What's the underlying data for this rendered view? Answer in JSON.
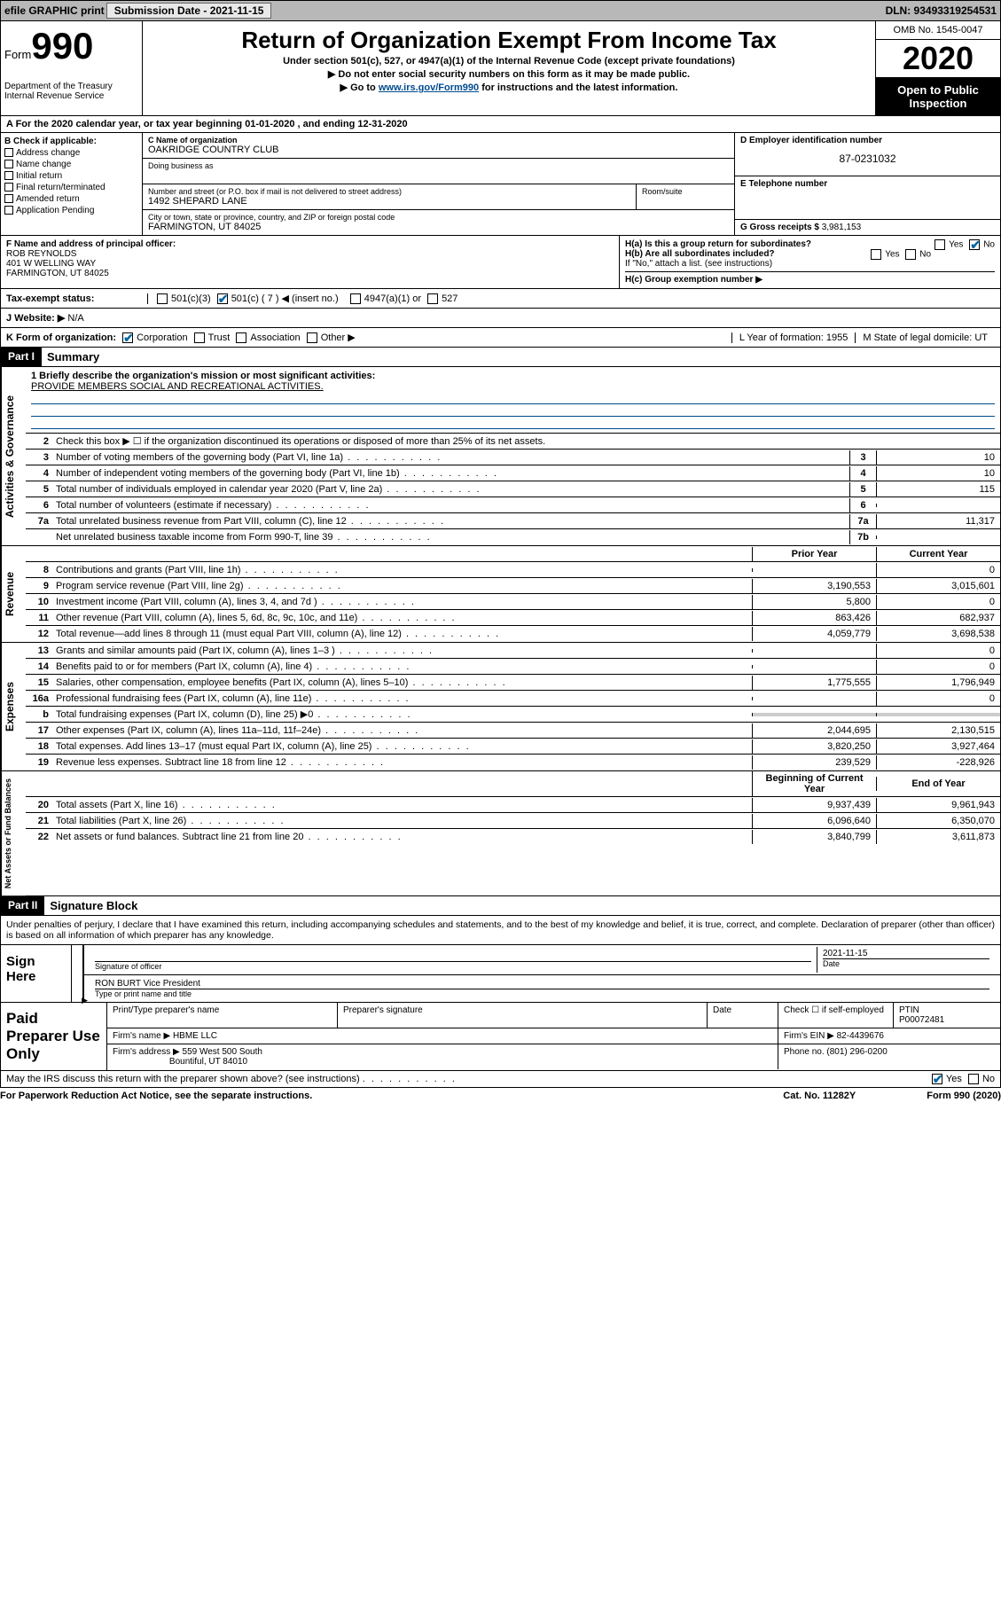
{
  "top": {
    "efile": "efile GRAPHIC print",
    "submission_label": "Submission Date - 2021-11-15",
    "dln": "DLN: 93493319254531"
  },
  "header": {
    "form_prefix": "Form",
    "form_num": "990",
    "dept": "Department of the Treasury\nInternal Revenue Service",
    "title": "Return of Organization Exempt From Income Tax",
    "sub1": "Under section 501(c), 527, or 4947(a)(1) of the Internal Revenue Code (except private foundations)",
    "sub2": "▶ Do not enter social security numbers on this form as it may be made public.",
    "sub3_pre": "▶ Go to ",
    "sub3_link": "www.irs.gov/Form990",
    "sub3_post": " for instructions and the latest information.",
    "omb": "OMB No. 1545-0047",
    "year": "2020",
    "inspection": "Open to Public Inspection"
  },
  "line_a": "A For the 2020 calendar year, or tax year beginning 01-01-2020   , and ending 12-31-2020",
  "section_b": {
    "check_label": "B Check if applicable:",
    "opts": [
      "Address change",
      "Name change",
      "Initial return",
      "Final return/terminated",
      "Amended return",
      "Application Pending"
    ],
    "c_label": "C Name of organization",
    "org_name": "OAKRIDGE COUNTRY CLUB",
    "dba_label": "Doing business as",
    "addr_label": "Number and street (or P.O. box if mail is not delivered to street address)",
    "room_label": "Room/suite",
    "addr": "1492 SHEPARD LANE",
    "city_label": "City or town, state or province, country, and ZIP or foreign postal code",
    "city": "FARMINGTON, UT  84025",
    "d_label": "D Employer identification number",
    "ein": "87-0231032",
    "e_label": "E Telephone number",
    "g_label": "G Gross receipts $",
    "g_val": "3,981,153"
  },
  "section_fh": {
    "f_label": "F Name and address of principal officer:",
    "f_name": "ROB REYNOLDS",
    "f_addr1": "401 W WELLING WAY",
    "f_addr2": "FARMINGTON, UT  84025",
    "ha": "H(a)  Is this a group return for subordinates?",
    "hb": "H(b)  Are all subordinates included?",
    "hb_note": "If \"No,\" attach a list. (see instructions)",
    "hc": "H(c)  Group exemption number ▶",
    "yes": "Yes",
    "no": "No"
  },
  "status": {
    "label": "Tax-exempt status:",
    "o1": "501(c)(3)",
    "o2": "501(c) ( 7 ) ◀ (insert no.)",
    "o3": "4947(a)(1) or",
    "o4": "527"
  },
  "website": {
    "label": "J   Website: ▶",
    "val": "N/A"
  },
  "k_row": {
    "label": "K Form of organization:",
    "corp": "Corporation",
    "trust": "Trust",
    "assoc": "Association",
    "other": "Other ▶",
    "l": "L Year of formation: 1955",
    "m": "M State of legal domicile: UT"
  },
  "part1": {
    "header": "Part I",
    "title": "Summary",
    "mission_label": "1   Briefly describe the organization's mission or most significant activities:",
    "mission": "PROVIDE MEMBERS SOCIAL AND RECREATIONAL ACTIVITIES.",
    "line2": "Check this box ▶ ☐  if the organization discontinued its operations or disposed of more than 25% of its net assets.",
    "lines_gov": [
      {
        "n": "3",
        "d": "Number of voting members of the governing body (Part VI, line 1a)",
        "b": "3",
        "v": "10"
      },
      {
        "n": "4",
        "d": "Number of independent voting members of the governing body (Part VI, line 1b)",
        "b": "4",
        "v": "10"
      },
      {
        "n": "5",
        "d": "Total number of individuals employed in calendar year 2020 (Part V, line 2a)",
        "b": "5",
        "v": "115"
      },
      {
        "n": "6",
        "d": "Total number of volunteers (estimate if necessary)",
        "b": "6",
        "v": ""
      },
      {
        "n": "7a",
        "d": "Total unrelated business revenue from Part VIII, column (C), line 12",
        "b": "7a",
        "v": "11,317"
      },
      {
        "n": "",
        "d": "Net unrelated business taxable income from Form 990-T, line 39",
        "b": "7b",
        "v": ""
      }
    ],
    "col_prior": "Prior Year",
    "col_current": "Current Year",
    "revenue": [
      {
        "n": "8",
        "d": "Contributions and grants (Part VIII, line 1h)",
        "p": "",
        "c": "0"
      },
      {
        "n": "9",
        "d": "Program service revenue (Part VIII, line 2g)",
        "p": "3,190,553",
        "c": "3,015,601"
      },
      {
        "n": "10",
        "d": "Investment income (Part VIII, column (A), lines 3, 4, and 7d )",
        "p": "5,800",
        "c": "0"
      },
      {
        "n": "11",
        "d": "Other revenue (Part VIII, column (A), lines 5, 6d, 8c, 9c, 10c, and 11e)",
        "p": "863,426",
        "c": "682,937"
      },
      {
        "n": "12",
        "d": "Total revenue—add lines 8 through 11 (must equal Part VIII, column (A), line 12)",
        "p": "4,059,779",
        "c": "3,698,538"
      }
    ],
    "expenses": [
      {
        "n": "13",
        "d": "Grants and similar amounts paid (Part IX, column (A), lines 1–3 )",
        "p": "",
        "c": "0"
      },
      {
        "n": "14",
        "d": "Benefits paid to or for members (Part IX, column (A), line 4)",
        "p": "",
        "c": "0"
      },
      {
        "n": "15",
        "d": "Salaries, other compensation, employee benefits (Part IX, column (A), lines 5–10)",
        "p": "1,775,555",
        "c": "1,796,949"
      },
      {
        "n": "16a",
        "d": "Professional fundraising fees (Part IX, column (A), line 11e)",
        "p": "",
        "c": "0"
      },
      {
        "n": "b",
        "d": "Total fundraising expenses (Part IX, column (D), line 25) ▶0",
        "p": "shaded",
        "c": "shaded"
      },
      {
        "n": "17",
        "d": "Other expenses (Part IX, column (A), lines 11a–11d, 11f–24e)",
        "p": "2,044,695",
        "c": "2,130,515"
      },
      {
        "n": "18",
        "d": "Total expenses. Add lines 13–17 (must equal Part IX, column (A), line 25)",
        "p": "3,820,250",
        "c": "3,927,464"
      },
      {
        "n": "19",
        "d": "Revenue less expenses. Subtract line 18 from line 12",
        "p": "239,529",
        "c": "-228,926"
      }
    ],
    "col_begin": "Beginning of Current Year",
    "col_end": "End of Year",
    "netassets": [
      {
        "n": "20",
        "d": "Total assets (Part X, line 16)",
        "p": "9,937,439",
        "c": "9,961,943"
      },
      {
        "n": "21",
        "d": "Total liabilities (Part X, line 26)",
        "p": "6,096,640",
        "c": "6,350,070"
      },
      {
        "n": "22",
        "d": "Net assets or fund balances. Subtract line 21 from line 20",
        "p": "3,840,799",
        "c": "3,611,873"
      }
    ]
  },
  "part2": {
    "header": "Part II",
    "title": "Signature Block",
    "perjury": "Under penalties of perjury, I declare that I have examined this return, including accompanying schedules and statements, and to the best of my knowledge and belief, it is true, correct, and complete. Declaration of preparer (other than officer) is based on all information of which preparer has any knowledge.",
    "sign_here": "Sign Here",
    "sig_officer": "Signature of officer",
    "sig_date": "2021-11-15",
    "date_label": "Date",
    "officer_name": "RON BURT Vice President",
    "type_label": "Type or print name and title",
    "paid_prep": "Paid Preparer Use Only",
    "print_name_label": "Print/Type preparer's name",
    "prep_sig_label": "Preparer's signature",
    "check_if": "Check ☐ if self-employed",
    "ptin_label": "PTIN",
    "ptin": "P00072481",
    "firm_name_label": "Firm's name   ▶",
    "firm_name": "HBME LLC",
    "firm_ein_label": "Firm's EIN ▶",
    "firm_ein": "82-4439676",
    "firm_addr_label": "Firm's address ▶",
    "firm_addr1": "559 West 500 South",
    "firm_addr2": "Bountiful, UT  84010",
    "phone_label": "Phone no.",
    "phone": "(801) 296-0200",
    "discuss": "May the IRS discuss this return with the preparer shown above? (see instructions)"
  },
  "footer": {
    "paperwork": "For Paperwork Reduction Act Notice, see the separate instructions.",
    "catno": "Cat. No. 11282Y",
    "formref": "Form 990 (2020)"
  }
}
